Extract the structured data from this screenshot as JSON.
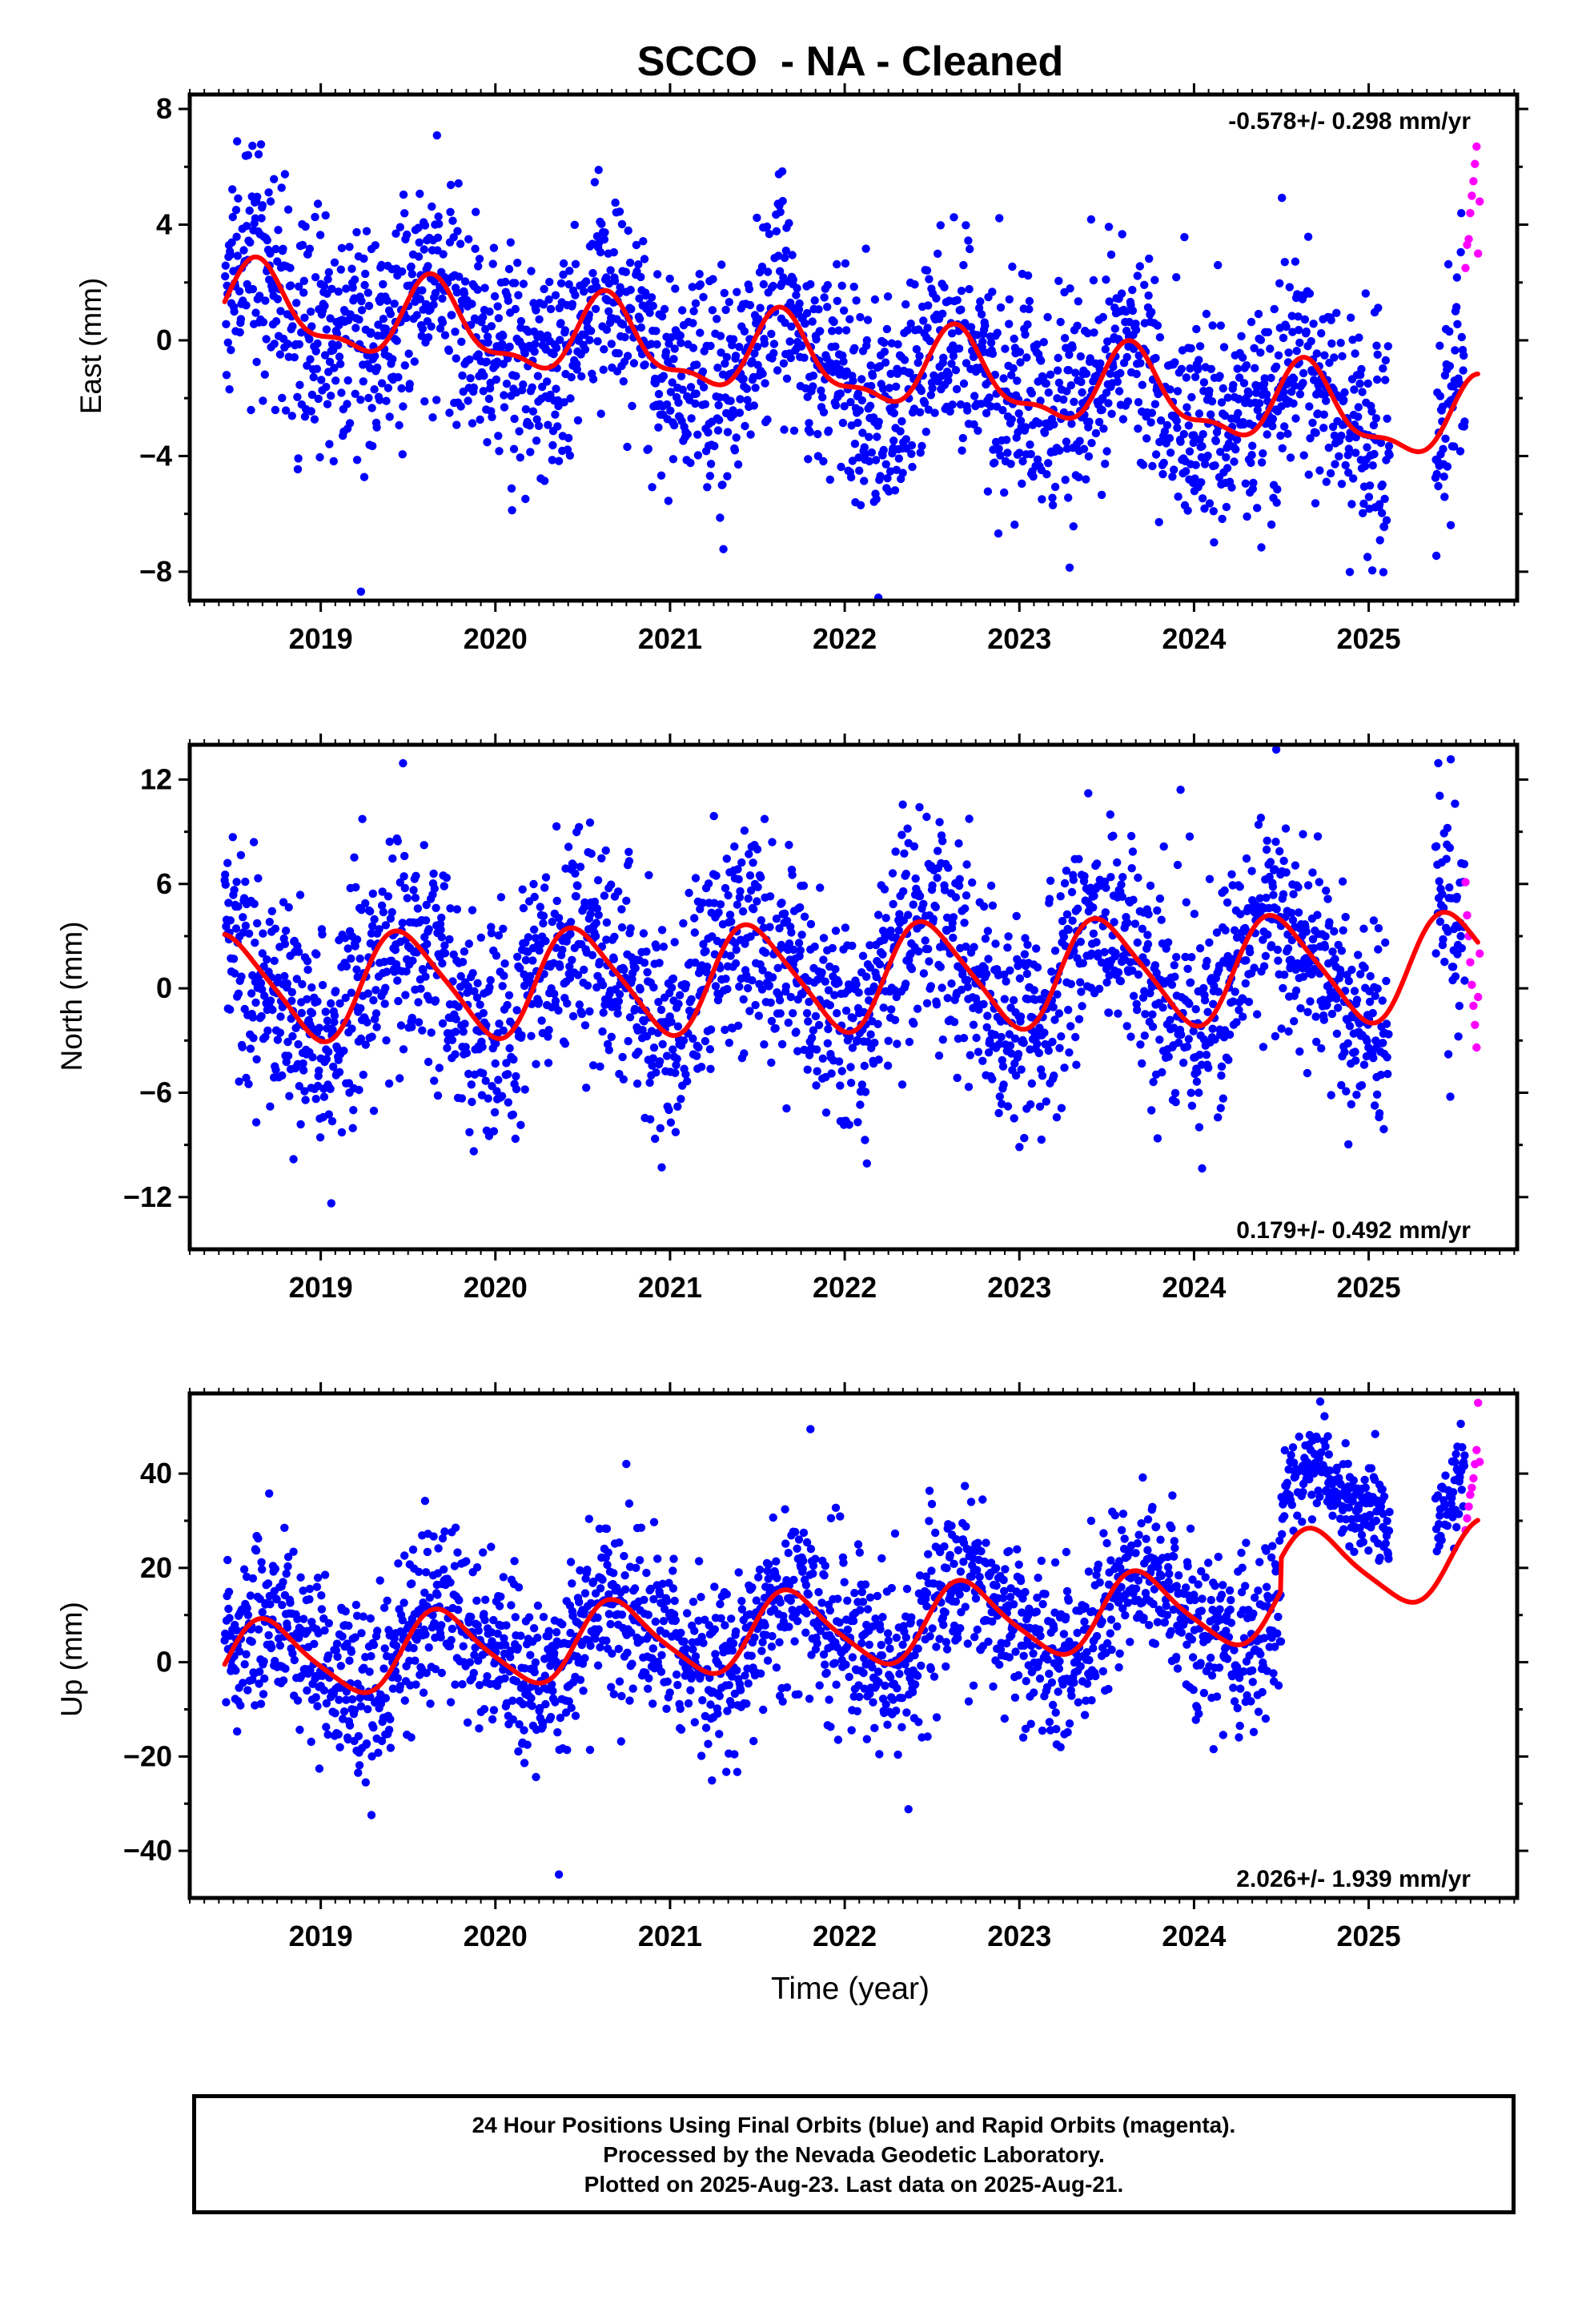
{
  "title": "SCCO  - NA - Cleaned",
  "colors": {
    "final": "#0000ff",
    "rapid": "#ff00ff",
    "model": "#ff0000"
  },
  "chart_data": [
    {
      "type": "scatter",
      "name": "east",
      "ylabel": "East (mm)",
      "xlabel": "",
      "xlim": [
        2018.25,
        2025.85
      ],
      "ylim": [
        -9,
        8.5
      ],
      "yticks": [
        -8,
        -4,
        0,
        4,
        8
      ],
      "xticks": [
        2019,
        2020,
        2021,
        2022,
        2023,
        2024,
        2025
      ],
      "rate_label": "-0.578+/- 0.298 mm/yr",
      "rate_position": "top-right",
      "trend": {
        "intercept": 1.2,
        "slope": -0.578,
        "reference_year": 2018.45
      },
      "model": {
        "start": 2018.45,
        "end": 2025.63,
        "annual_amp": 1.3,
        "annual_phase": 2018.65,
        "semiannual_amp": 0.5,
        "semiannual_phase": 2018.62,
        "offsets": []
      },
      "scatter": {
        "sigma": 1.9,
        "outlier_count": 20
      },
      "data_start": 2018.45,
      "final_end": 2025.55,
      "rapid_end": 2025.64,
      "gaps": [
        [
          2025.12,
          2025.38
        ]
      ],
      "rapid_points": [
        2.5,
        3.3,
        3.5,
        4.4,
        5.0,
        5.5,
        6.1,
        6.7,
        3.0,
        4.8
      ]
    },
    {
      "type": "scatter",
      "name": "north",
      "ylabel": "North (mm)",
      "xlabel": "",
      "xlim": [
        2018.25,
        2025.85
      ],
      "ylim": [
        -15,
        14
      ],
      "yticks": [
        -12,
        -6,
        0,
        6,
        12
      ],
      "xticks": [
        2019,
        2020,
        2021,
        2022,
        2023,
        2024,
        2025
      ],
      "rate_label": "0.179+/- 0.492 mm/yr",
      "rate_position": "bottom-right",
      "trend": {
        "intercept": 0.0,
        "slope": 0.179,
        "reference_year": 2018.45
      },
      "model": {
        "start": 2018.45,
        "end": 2025.63,
        "annual_amp": 3.0,
        "annual_phase": 2018.48,
        "semiannual_amp": 0.5,
        "semiannual_phase": 2018.35,
        "offsets": []
      },
      "scatter": {
        "sigma": 3.1,
        "outlier_count": 16
      },
      "data_start": 2018.45,
      "final_end": 2025.55,
      "rapid_end": 2025.64,
      "gaps": [
        [
          2025.12,
          2025.38
        ]
      ],
      "rapid_points": [
        6.1,
        4.2,
        3.0,
        1.5,
        0.2,
        -1.0,
        -2.1,
        -3.4,
        -0.5,
        2.0
      ]
    },
    {
      "type": "scatter",
      "name": "up",
      "ylabel": "Up (mm)",
      "xlabel": "Time (year)",
      "xlim": [
        2018.25,
        2025.85
      ],
      "ylim": [
        -50,
        57
      ],
      "yticks": [
        -40,
        -20,
        0,
        20,
        40
      ],
      "xticks": [
        2019,
        2020,
        2021,
        2022,
        2023,
        2024,
        2025
      ],
      "rate_label": "2.026+/- 1.939 mm/yr",
      "rate_position": "bottom-right",
      "trend": {
        "intercept": 0.0,
        "slope": 2.026,
        "reference_year": 2018.45
      },
      "model": {
        "start": 2018.45,
        "end": 2025.63,
        "annual_amp": 8.0,
        "annual_phase": 2018.7,
        "semiannual_amp": 1.5,
        "semiannual_phase": 2018.6,
        "offsets": [
          [
            2024.5,
            7.0
          ]
        ]
      },
      "scatter": {
        "sigma": 9.0,
        "outlier_count": 18
      },
      "data_start": 2018.45,
      "final_end": 2025.55,
      "rapid_end": 2025.64,
      "gaps": [
        [
          2025.12,
          2025.38
        ]
      ],
      "step": {
        "year": 2024.5,
        "shift": 20.0,
        "sigma_after": 4.5
      },
      "rapid_points": [
        28.0,
        30.5,
        33.0,
        35.5,
        37.0,
        39.0,
        42.0,
        45.0,
        55.0,
        42.5
      ]
    }
  ],
  "caption": {
    "line1": "24 Hour Positions Using Final Orbits (blue) and Rapid Orbits (magenta).",
    "line2": "Processed by the Nevada Geodetic Laboratory.",
    "line3": "Plotted on 2025-Aug-23. Last data on 2025-Aug-21."
  }
}
